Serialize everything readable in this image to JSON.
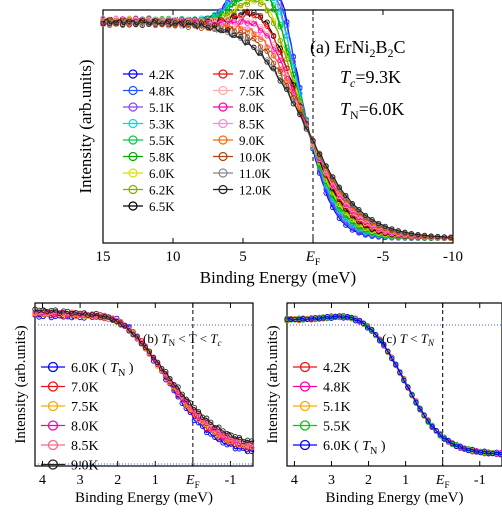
{
  "chart_data": [
    {
      "panel_id": "a",
      "type": "line",
      "xlabel": "Binding Energy (meV)",
      "ylabel": "Intensity (arb.units)",
      "xlim": [
        15,
        -10
      ],
      "x_reversed": true,
      "xticks": [
        15,
        10,
        5,
        0,
        -5,
        -10
      ],
      "xtick_labels": [
        "15",
        "10",
        "5",
        "E_F",
        "-5",
        "-10"
      ],
      "fermi_line_x": 0,
      "annotation": {
        "label_prefix": "(a) ErNi",
        "sub1": "2",
        "mid": "B",
        "sub2": "2",
        "suffix": "C",
        "tc_text": "T",
        "tc_sub": "c",
        "tc_value": "=9.3K",
        "tn_text": "T",
        "tn_sub": "N",
        "tn_value": "=6.0K"
      },
      "legend_columns": 2,
      "series": [
        {
          "name": "4.2K",
          "color": "#0000ff",
          "peak": 1.06
        },
        {
          "name": "4.8K",
          "color": "#2255ff",
          "peak": 1.06
        },
        {
          "name": "5.1K",
          "color": "#8844ff",
          "peak": 1.05
        },
        {
          "name": "5.3K",
          "color": "#00dddd",
          "peak": 1.05
        },
        {
          "name": "5.5K",
          "color": "#00cc44",
          "peak": 1.04
        },
        {
          "name": "5.8K",
          "color": "#00aa00",
          "peak": 1.04
        },
        {
          "name": "6.0K",
          "color": "#dddd00",
          "peak": 1.03
        },
        {
          "name": "6.2K",
          "color": "#88aa00",
          "peak": 1.03
        },
        {
          "name": "6.5K",
          "color": "#000000",
          "peak": 1.02
        },
        {
          "name": "7.0K",
          "color": "#ee1111",
          "peak": 1.02
        },
        {
          "name": "7.5K",
          "color": "#ffaaaa",
          "peak": 1.015
        },
        {
          "name": "8.0K",
          "color": "#ff00aa",
          "peak": 1.015
        },
        {
          "name": "8.5K",
          "color": "#ff88dd",
          "peak": 1.01
        },
        {
          "name": "9.0K",
          "color": "#ff6600",
          "peak": 1.01
        },
        {
          "name": "10.0K",
          "color": "#aa4411",
          "peak": 1.005
        },
        {
          "name": "11.0K",
          "color": "#888888",
          "peak": 1.0
        },
        {
          "name": "12.0K",
          "color": "#222222",
          "peak": 1.0
        }
      ]
    },
    {
      "panel_id": "b",
      "type": "line",
      "xlabel": "Binding Energy (meV)",
      "ylabel": "Intensity (arb.units)",
      "xlim": [
        4.2,
        -1.6
      ],
      "x_reversed": true,
      "xticks": [
        4,
        3,
        2,
        1,
        0,
        -1
      ],
      "xtick_labels": [
        "4",
        "3",
        "2",
        "1",
        "E_F",
        "-1"
      ],
      "fermi_line_x": 0,
      "annotation": {
        "label": "(b) ",
        "t1": "T",
        "t1_sub": "N",
        "mid": " < T < ",
        "t2": "T",
        "t2_sub": "c"
      },
      "legend_columns": 1,
      "series": [
        {
          "name": "6.0K (",
          "name_sub_t": "T",
          "name_sub": "N",
          "name_close": ")",
          "color": "#0000ff",
          "tail": 0.08
        },
        {
          "name": "7.0K",
          "color": "#ee1111",
          "tail": 0.12
        },
        {
          "name": "7.5K",
          "color": "#ffaa00",
          "tail": 0.14
        },
        {
          "name": "8.0K",
          "color": "#ff00aa",
          "tail": 0.16
        },
        {
          "name": "8.5K",
          "color": "#ff6688",
          "tail": 0.18
        },
        {
          "name": "9.0K",
          "color": "#222222",
          "tail": 0.21
        }
      ]
    },
    {
      "panel_id": "c",
      "type": "line",
      "xlabel": "Binding Energy (meV)",
      "ylabel": "Intensity (arb.units)",
      "xlim": [
        4.2,
        -1.6
      ],
      "x_reversed": true,
      "xticks": [
        4,
        3,
        2,
        1,
        0,
        -1
      ],
      "xtick_labels": [
        "4",
        "3",
        "2",
        "1",
        "E_F",
        "-1"
      ],
      "fermi_line_x": 0,
      "annotation": {
        "label": "(c) ",
        "t1": "T",
        "mid": " < ",
        "t2": "T",
        "t2_sub": "N"
      },
      "legend_columns": 1,
      "series": [
        {
          "name": "4.2K",
          "color": "#ee1111"
        },
        {
          "name": "4.8K",
          "color": "#ff00aa"
        },
        {
          "name": "5.1K",
          "color": "#ffaa00"
        },
        {
          "name": "5.5K",
          "color": "#00cc00"
        },
        {
          "name": "6.0K (",
          "name_sub_t": "T",
          "name_sub": "N",
          "name_close": ")",
          "color": "#0000ff"
        }
      ]
    }
  ]
}
